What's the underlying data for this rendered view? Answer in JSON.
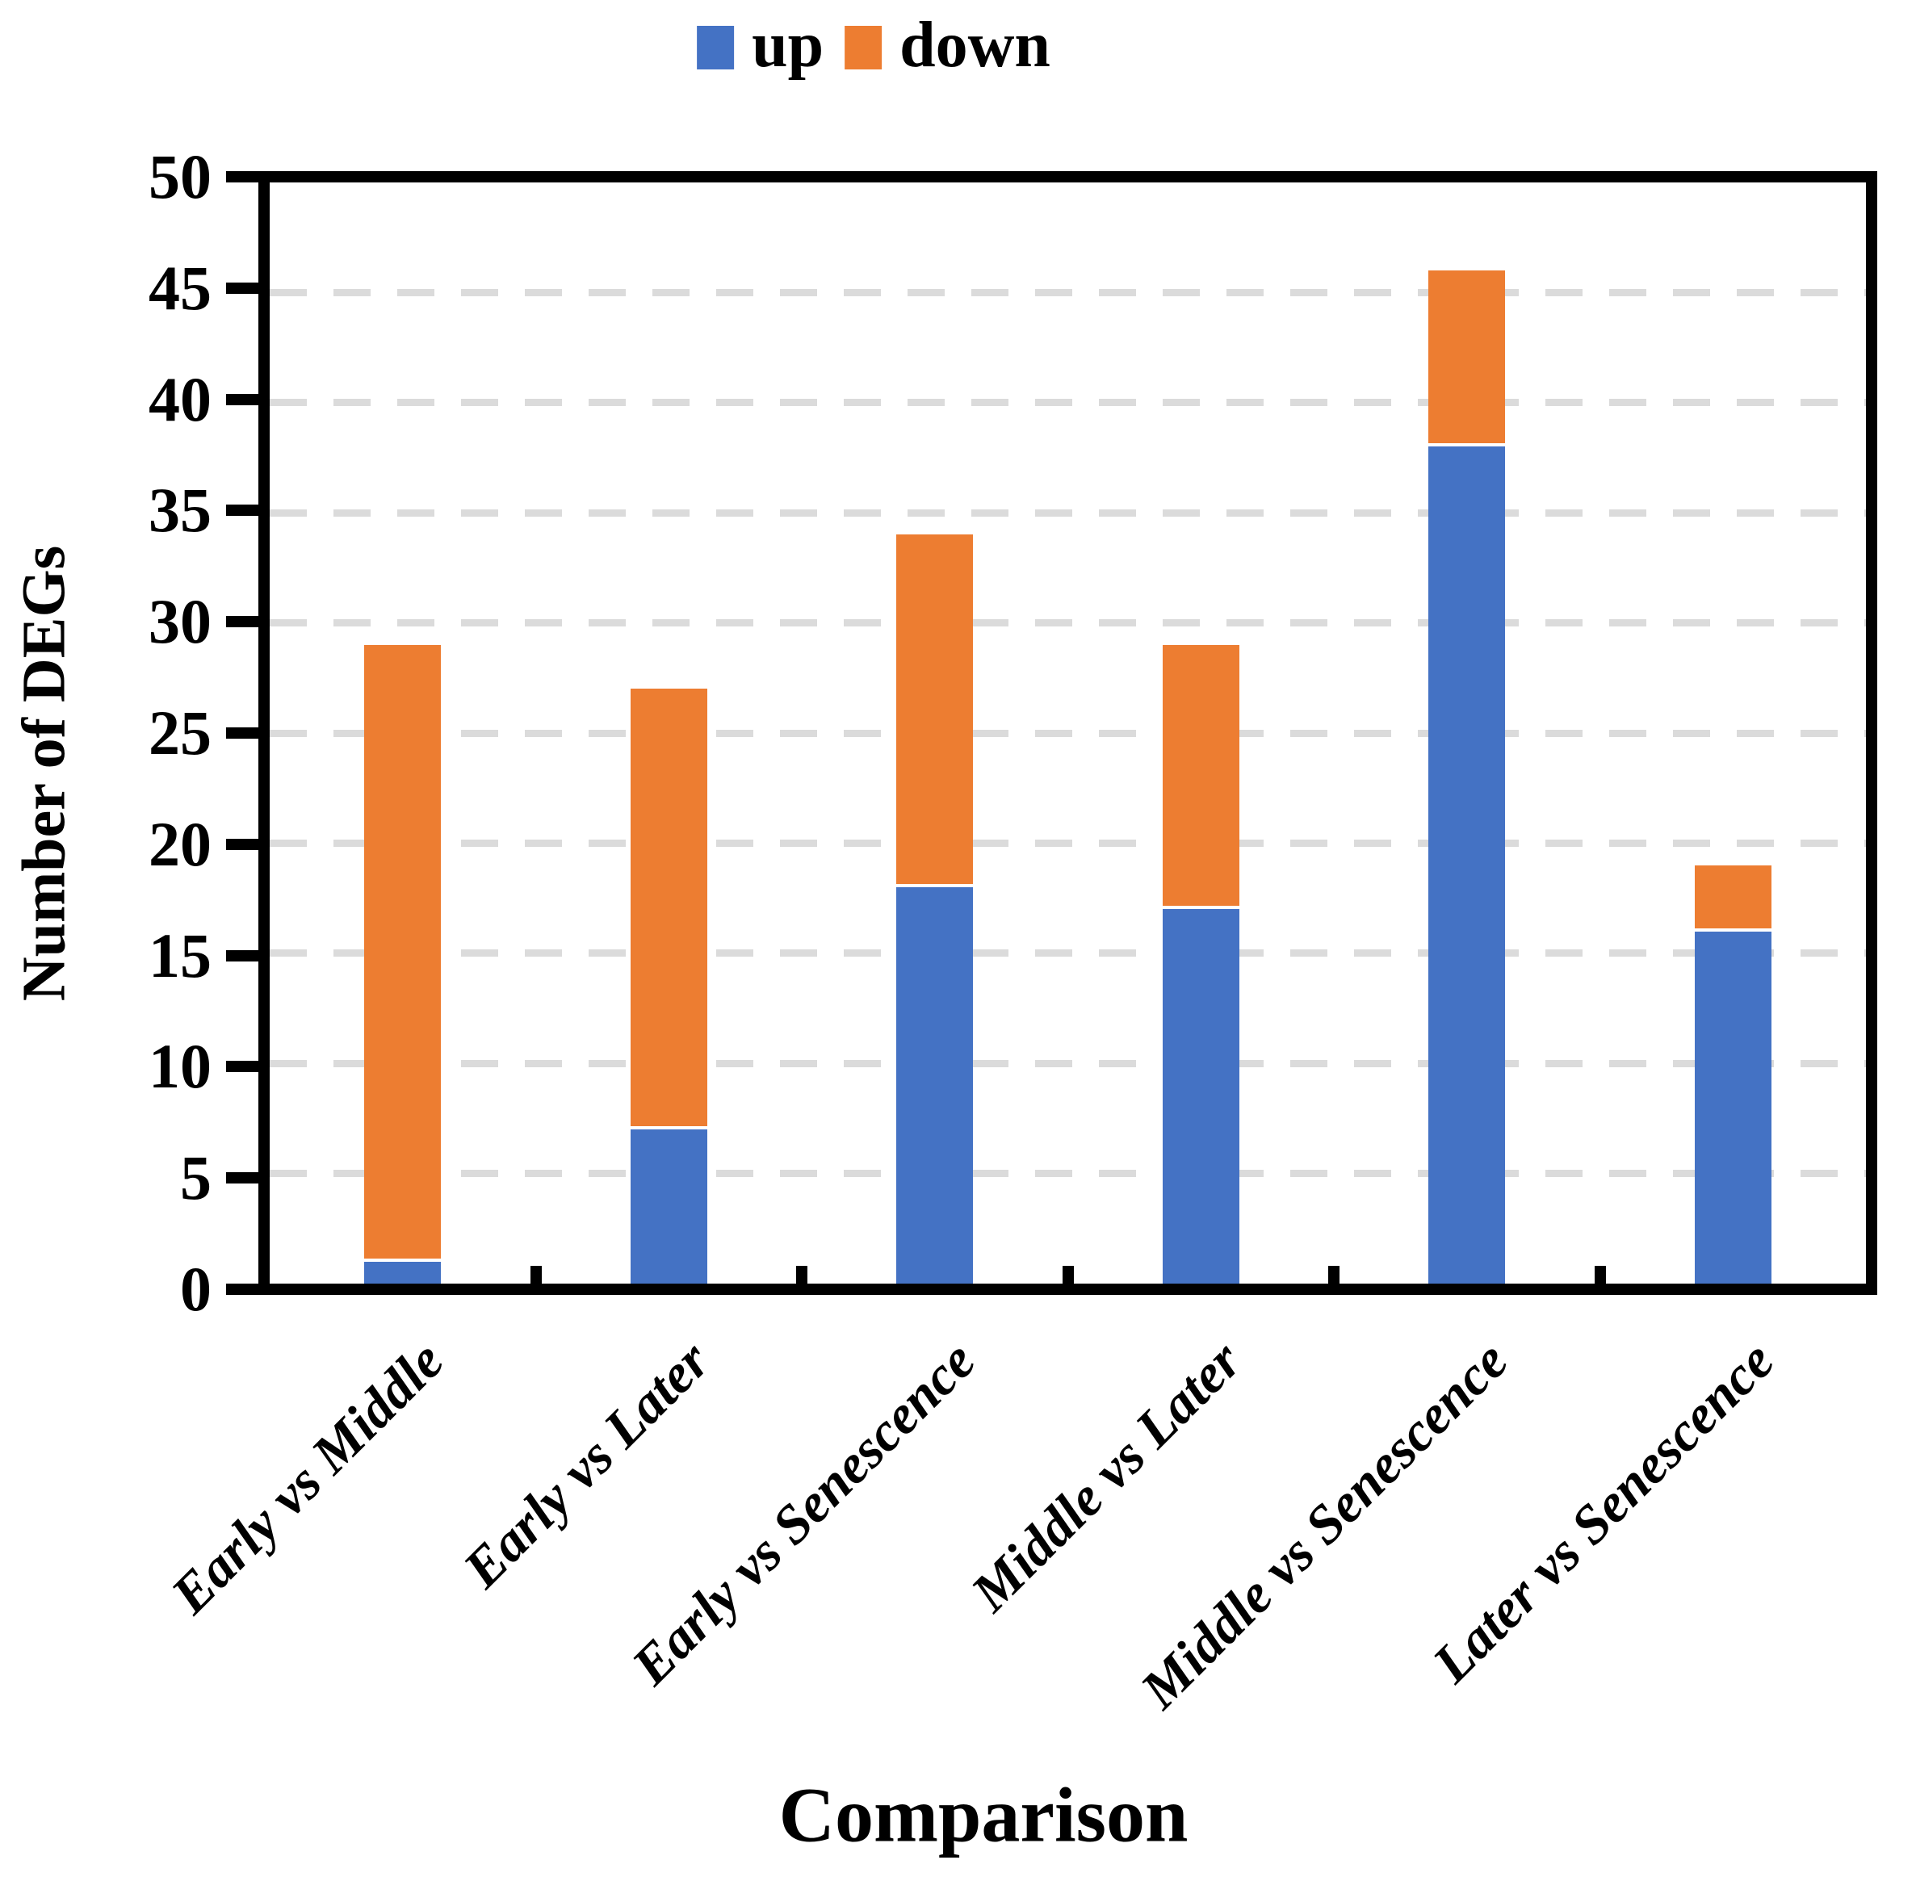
{
  "legend": {
    "items": [
      {
        "label": "up",
        "color": "#4472C4"
      },
      {
        "label": "down",
        "color": "#ED7D31"
      }
    ]
  },
  "axes": {
    "y_tick_labels": [
      "0",
      "5",
      "10",
      "15",
      "20",
      "25",
      "30",
      "35",
      "40",
      "45",
      "50"
    ]
  },
  "chart_data": {
    "type": "bar",
    "stacked": true,
    "categories": [
      "Early vs Middle",
      "Early vs Later",
      "Early vs Senescence",
      "Middle vs Later",
      "Middle vs Senescence",
      "Later vs Senescence"
    ],
    "series": [
      {
        "name": "up",
        "color": "#4472C4",
        "values": [
          1,
          7,
          18,
          17,
          38,
          16
        ]
      },
      {
        "name": "down",
        "color": "#ED7D31",
        "values": [
          28,
          20,
          16,
          12,
          8,
          3
        ]
      }
    ],
    "totals": [
      29,
      27,
      34,
      29,
      46,
      19
    ],
    "title": "",
    "xlabel": "Comparison",
    "ylabel": "Number of DEGs",
    "ylim": [
      0,
      50
    ],
    "ytick_step": 5,
    "grid": "horizontal dashed gray lines at 5 through 45",
    "gridline_color": "#DBDBDB",
    "frame_color": "#000000",
    "legend_position": "top-center"
  }
}
